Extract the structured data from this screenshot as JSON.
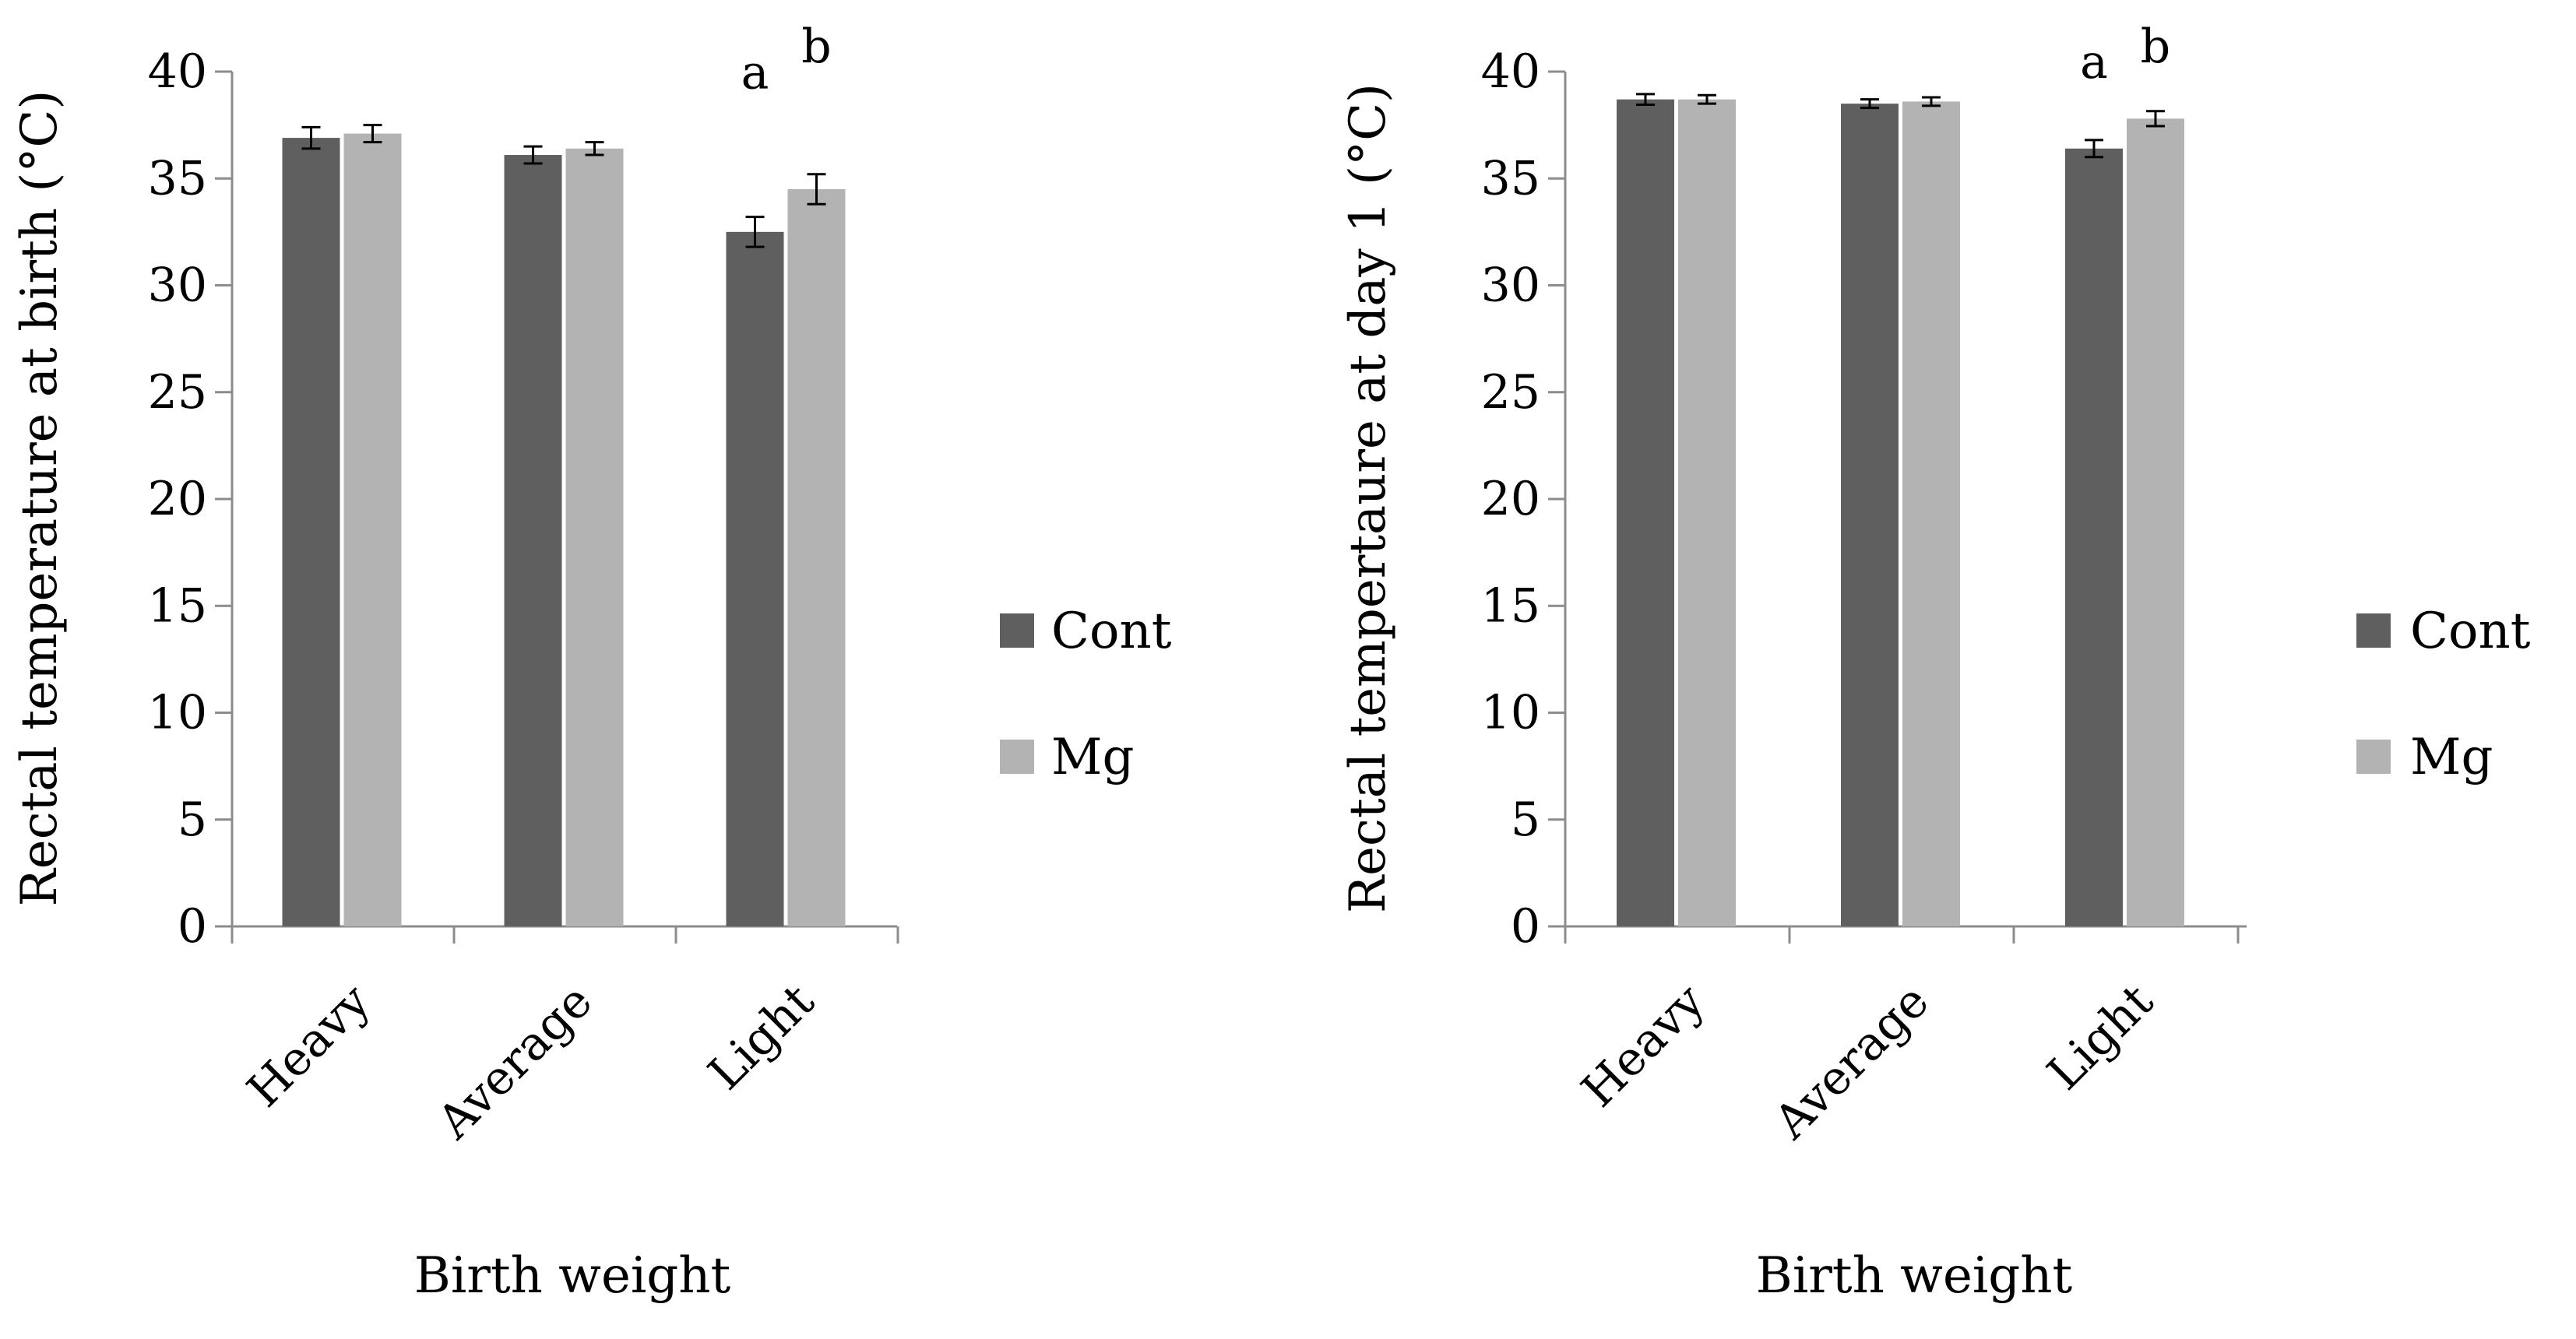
{
  "chart_data": [
    {
      "type": "bar",
      "title": "",
      "xlabel": "Birth weight",
      "ylabel": "Rectal temperature at birth (°C)",
      "ylim": [
        0,
        40
      ],
      "yticks": [
        0,
        5,
        10,
        15,
        20,
        25,
        30,
        35,
        40
      ],
      "ytick_labels": [
        "0",
        "5",
        "10",
        "15",
        "20",
        "25",
        "30",
        "35",
        "40"
      ],
      "grid": false,
      "legend_position": "right",
      "categories": [
        "Heavy",
        "Average",
        "Light"
      ],
      "series": [
        {
          "name": "Cont",
          "color": "#5f5f5f",
          "values": [
            36.9,
            36.1,
            32.5
          ],
          "errors": [
            0.5,
            0.4,
            0.7
          ]
        },
        {
          "name": "Mg",
          "color": "#b3b3b3",
          "values": [
            37.1,
            36.4,
            34.5
          ],
          "errors": [
            0.4,
            0.3,
            0.7
          ]
        }
      ],
      "annotations": [
        {
          "text": "a",
          "category": "Light",
          "series": "Cont"
        },
        {
          "text": "b",
          "category": "Light",
          "series": "Mg"
        }
      ]
    },
    {
      "type": "bar",
      "title": "",
      "xlabel": "Birth weight",
      "ylabel": "Rectal tempertaure at day 1 (°C)",
      "ylim": [
        0,
        40
      ],
      "yticks": [
        0,
        5,
        10,
        15,
        20,
        25,
        30,
        35,
        40
      ],
      "ytick_labels": [
        "0",
        "5",
        "10",
        "15",
        "20",
        "25",
        "30",
        "35",
        "40"
      ],
      "grid": false,
      "legend_position": "right",
      "categories": [
        "Heavy",
        "Average",
        "Light"
      ],
      "series": [
        {
          "name": "Cont",
          "color": "#5f5f5f",
          "values": [
            38.7,
            38.5,
            36.4
          ],
          "errors": [
            0.25,
            0.2,
            0.4
          ]
        },
        {
          "name": "Mg",
          "color": "#b3b3b3",
          "values": [
            38.7,
            38.6,
            37.8
          ],
          "errors": [
            0.2,
            0.2,
            0.35
          ]
        }
      ],
      "annotations": [
        {
          "text": "a",
          "category": "Light",
          "series": "Cont"
        },
        {
          "text": "b",
          "category": "Light",
          "series": "Mg"
        }
      ]
    }
  ]
}
